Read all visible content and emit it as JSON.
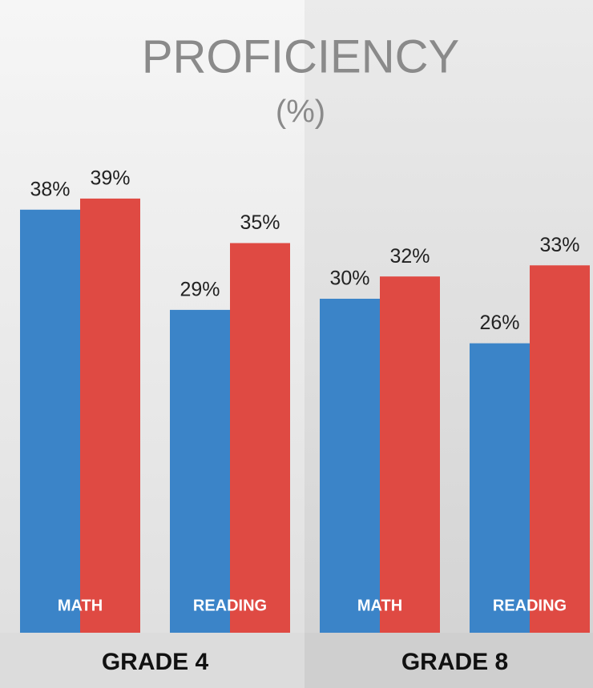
{
  "chart_data": {
    "type": "bar",
    "title": "PROFICIENCY",
    "subtitle": "(%)",
    "categories": [
      "MATH",
      "READING",
      "MATH",
      "READING"
    ],
    "groups": [
      "GRADE 4",
      "GRADE 8"
    ],
    "series": [
      {
        "color": "#3b84c8",
        "values": [
          38,
          29,
          30,
          26
        ],
        "value_labels": [
          "38%",
          "29%",
          "30%",
          "26%"
        ]
      },
      {
        "color": "#df4a43",
        "values": [
          39,
          35,
          32,
          33
        ],
        "value_labels": [
          "39%",
          "35%",
          "32%",
          "33%"
        ]
      }
    ]
  }
}
